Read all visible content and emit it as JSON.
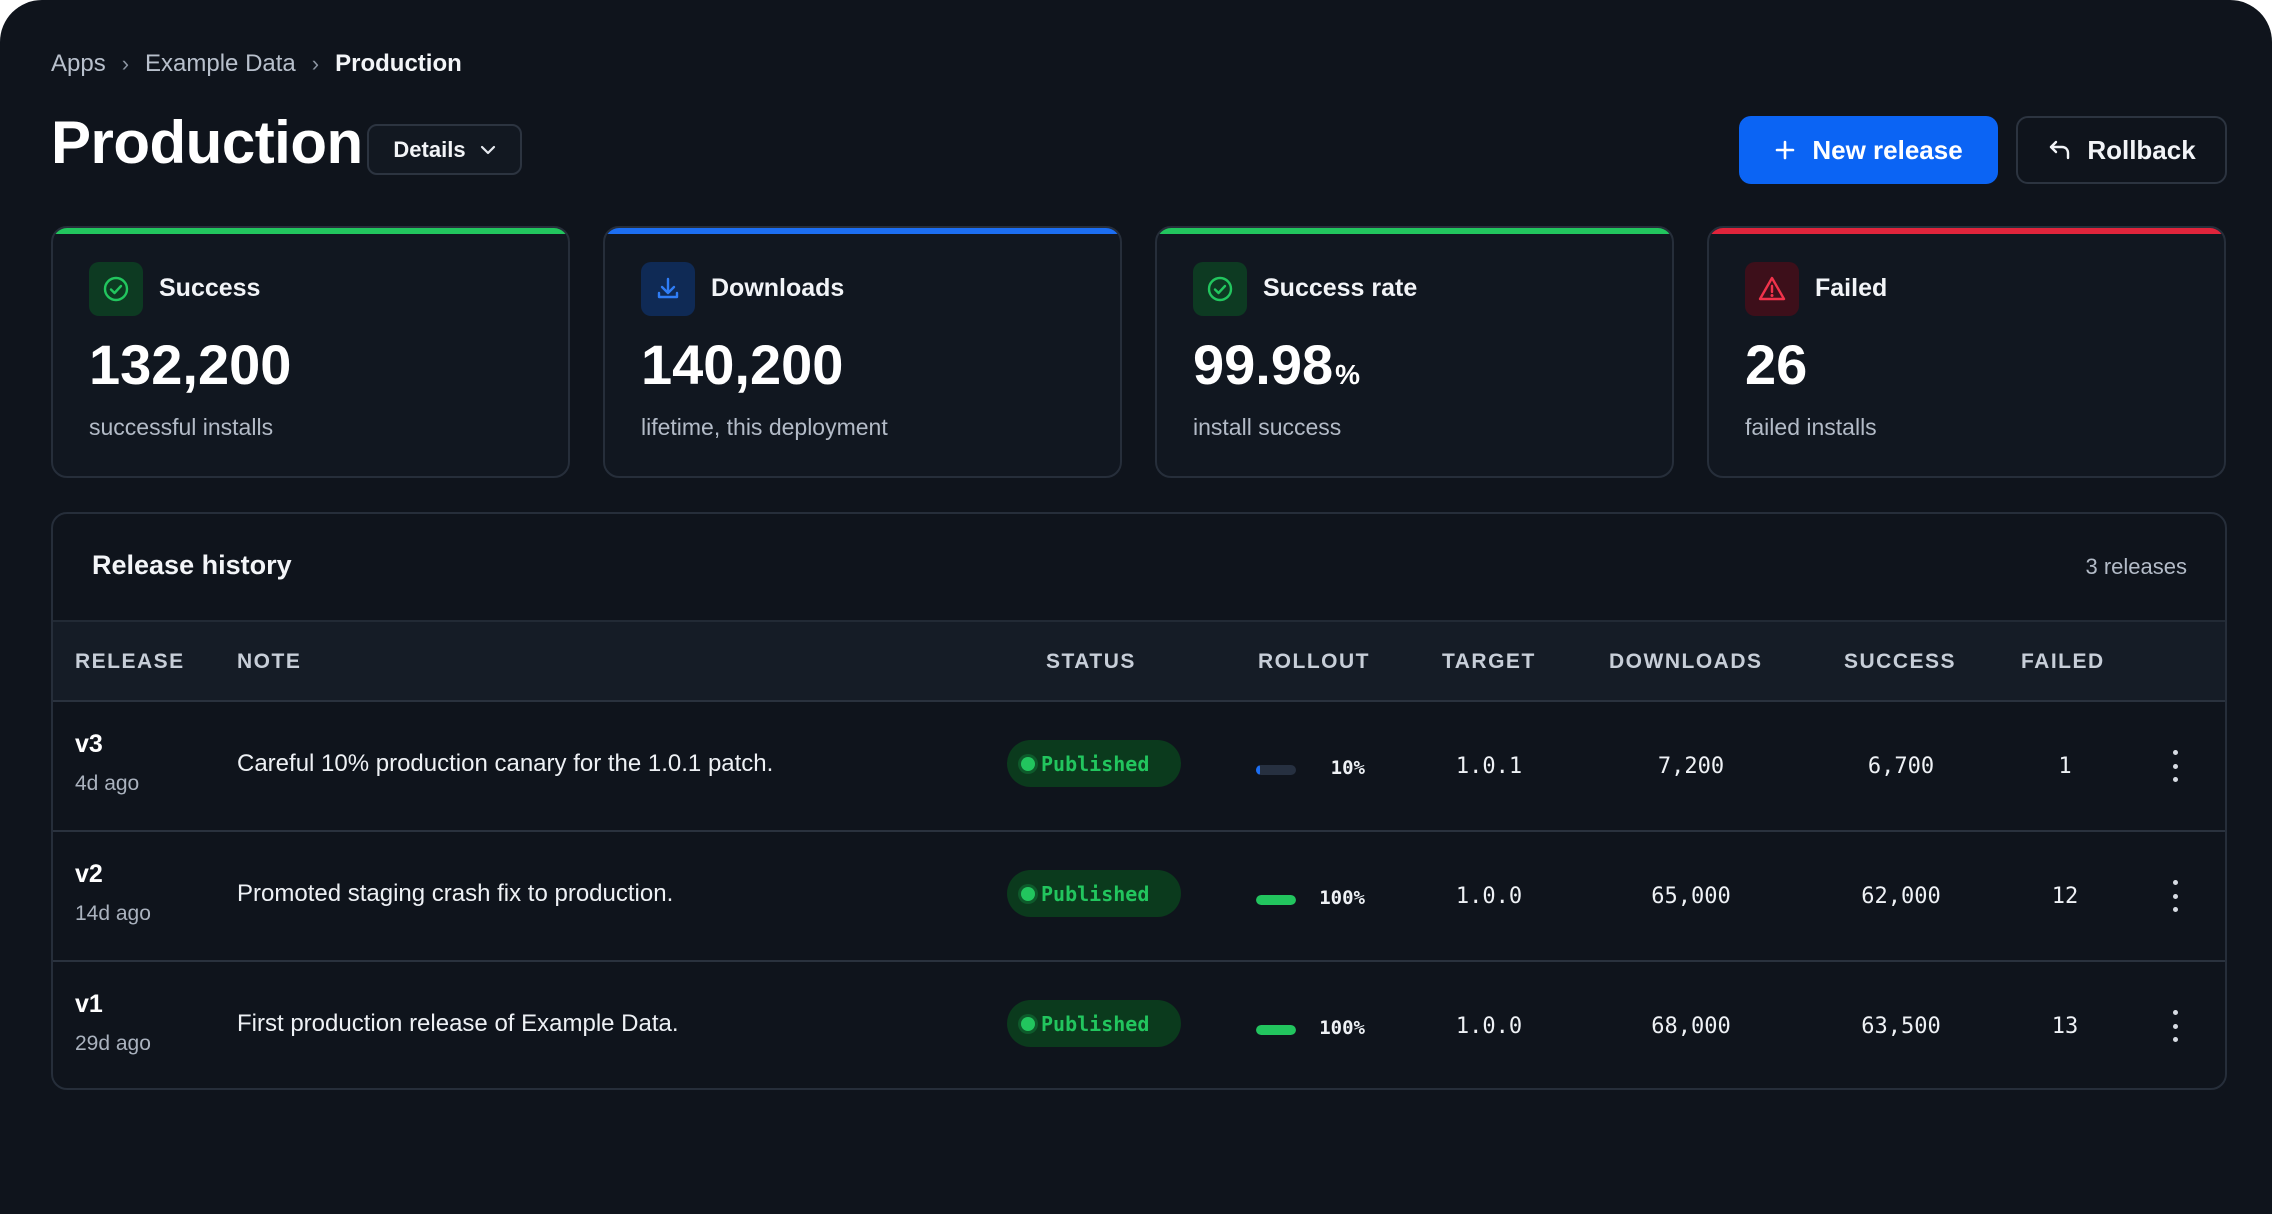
{
  "breadcrumb": {
    "items": [
      "Apps",
      "Example Data"
    ],
    "current": "Production"
  },
  "page": {
    "title": "Production",
    "details_label": "Details"
  },
  "actions": {
    "new_release": "New release",
    "rollback": "Rollback"
  },
  "colors": {
    "accent": "#0b64f4",
    "success": "#22c55e",
    "info": "#1c6ef2",
    "danger": "#e0243b"
  },
  "stats": [
    {
      "label": "Success",
      "value": "132,200",
      "unit": "",
      "sub": "successful installs",
      "icon": "check-circle-icon",
      "color": "#22c55e"
    },
    {
      "label": "Downloads",
      "value": "140,200",
      "unit": "",
      "sub": "lifetime, this deployment",
      "icon": "download-icon",
      "color": "#1c6ef2"
    },
    {
      "label": "Success rate",
      "value": "99.98",
      "unit": "%",
      "sub": "install success",
      "icon": "check-circle-icon",
      "color": "#22c55e"
    },
    {
      "label": "Failed",
      "value": "26",
      "unit": "",
      "sub": "failed installs",
      "icon": "warning-triangle-icon",
      "color": "#e0243b"
    }
  ],
  "history": {
    "title": "Release history",
    "count": "3 releases",
    "columns": {
      "release": "RELEASE",
      "note": "NOTE",
      "status": "STATUS",
      "rollout": "ROLLOUT",
      "target": "TARGET",
      "downloads": "DOWNLOADS",
      "success": "SUCCESS",
      "failed": "FAILED"
    },
    "rows": [
      {
        "release": "v3",
        "ago": "4d ago",
        "note": "Careful 10% production canary for the 1.0.1 patch.",
        "status": "Published",
        "rollout_label": "10%",
        "rollout": 0.1,
        "target": "1.0.1",
        "downloads": "7,200",
        "success": "6,700",
        "failed": "1"
      },
      {
        "release": "v2",
        "ago": "14d ago",
        "note": "Promoted staging crash fix to production.",
        "status": "Published",
        "rollout_label": "100%",
        "rollout": 1.0,
        "target": "1.0.0",
        "downloads": "65,000",
        "success": "62,000",
        "failed": "12"
      },
      {
        "release": "v1",
        "ago": "29d ago",
        "note": "First production release of Example Data.",
        "status": "Published",
        "rollout_label": "100%",
        "rollout": 1.0,
        "target": "1.0.0",
        "downloads": "68,000",
        "success": "63,500",
        "failed": "13"
      }
    ]
  }
}
